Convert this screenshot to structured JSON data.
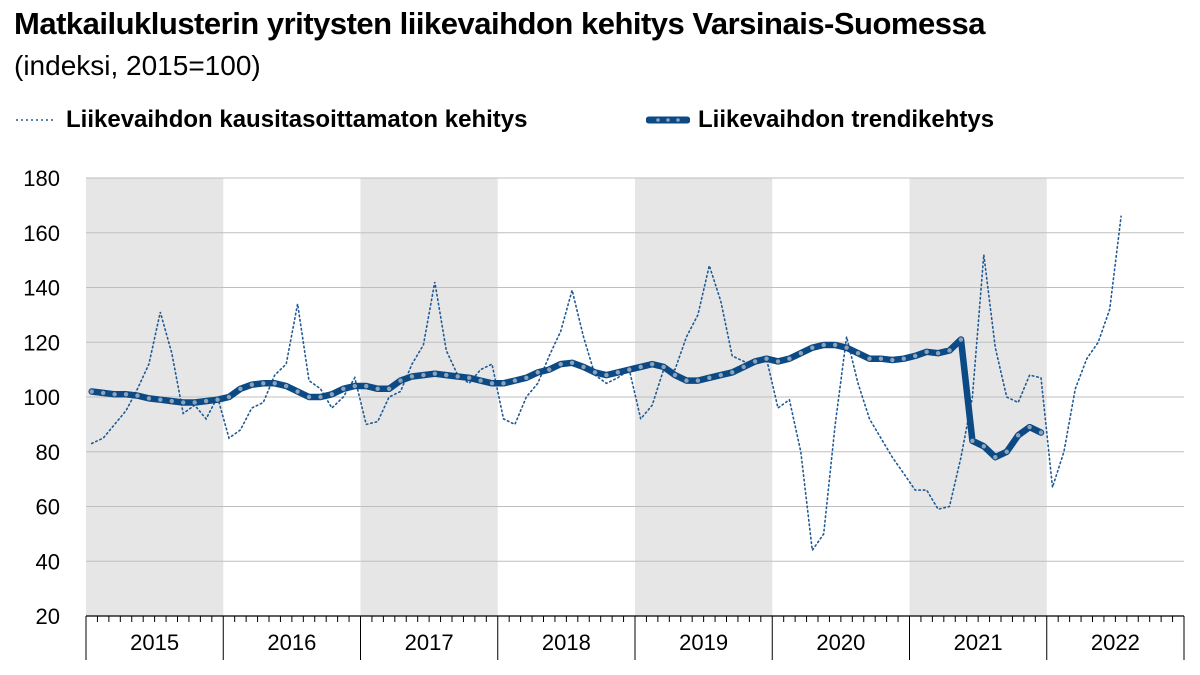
{
  "header": {
    "title": "Matkailuklusterin yritysten liikevaihdon kehitys Varsinais-Suomessa",
    "subtitle": "(indeksi, 2015=100)"
  },
  "colors": {
    "raw_series": "#1f5a94",
    "trend_series": "#0b4a85",
    "trend_marker": "#8fa3b8",
    "shaded_band": "#e6e6e6",
    "grid": "#bfbfbf"
  },
  "chart_data": {
    "type": "line",
    "title": "Matkailuklusterin yritysten liikevaihdon kehitys Varsinais-Suomessa",
    "subtitle": "(indeksi, 2015=100)",
    "xlabel": "",
    "ylabel": "",
    "ylim": [
      20,
      180
    ],
    "yticks": [
      20,
      40,
      60,
      80,
      100,
      120,
      140,
      160,
      180
    ],
    "years": [
      "2015",
      "2016",
      "2017",
      "2018",
      "2019",
      "2020",
      "2021",
      "2022"
    ],
    "shaded_years": [
      "2015",
      "2017",
      "2019",
      "2021"
    ],
    "x_unit": "month index (0 = 2015-01)",
    "legend_position": "top",
    "grid": true,
    "series": [
      {
        "name": "Liikevaihdon kausitasoittamaton kehitys",
        "style": "dotted",
        "values": [
          83,
          85,
          90,
          95,
          103,
          112,
          131,
          116,
          94,
          97,
          92,
          100,
          85,
          88,
          96,
          98,
          108,
          112,
          134,
          106,
          103,
          96,
          100,
          107,
          90,
          91,
          100,
          102,
          112,
          119,
          142,
          117,
          108,
          105,
          110,
          112,
          92,
          90,
          100,
          105,
          115,
          124,
          139,
          122,
          108,
          105,
          107,
          110,
          92,
          97,
          110,
          110,
          122,
          130,
          148,
          135,
          115,
          113,
          112,
          114,
          96,
          99,
          80,
          44,
          50,
          90,
          122,
          105,
          92,
          85,
          78,
          72,
          66,
          66,
          59,
          60,
          78,
          100,
          152,
          118,
          100,
          98,
          108,
          107,
          67,
          80,
          103,
          114,
          120,
          132,
          166
        ]
      },
      {
        "name": "Liikevaihdon trendikehtys",
        "style": "solid-thick-with-markers",
        "values": [
          102,
          101.5,
          101,
          101,
          100.5,
          99.5,
          99,
          98.5,
          98,
          98,
          98.5,
          99,
          100,
          103,
          104.5,
          105,
          105,
          104,
          102,
          100,
          100,
          101,
          103,
          104,
          104,
          103,
          103,
          106,
          107.5,
          108,
          108.5,
          108,
          107.5,
          107,
          106,
          105,
          105,
          106,
          107,
          109,
          110,
          112,
          112.5,
          111,
          109,
          108,
          109,
          110,
          111,
          112,
          111,
          108,
          106,
          106,
          107,
          108,
          109,
          111,
          113,
          114,
          113,
          114,
          116,
          118,
          119,
          119,
          118,
          116,
          114,
          114,
          113.5,
          114,
          115,
          116.5,
          116,
          117,
          121,
          84,
          82,
          78,
          80,
          86,
          89,
          87
        ]
      }
    ]
  },
  "legend": {
    "raw_label": "Liikevaihdon kausitasoittamaton kehitys",
    "trend_label": "Liikevaihdon trendikehtys"
  }
}
